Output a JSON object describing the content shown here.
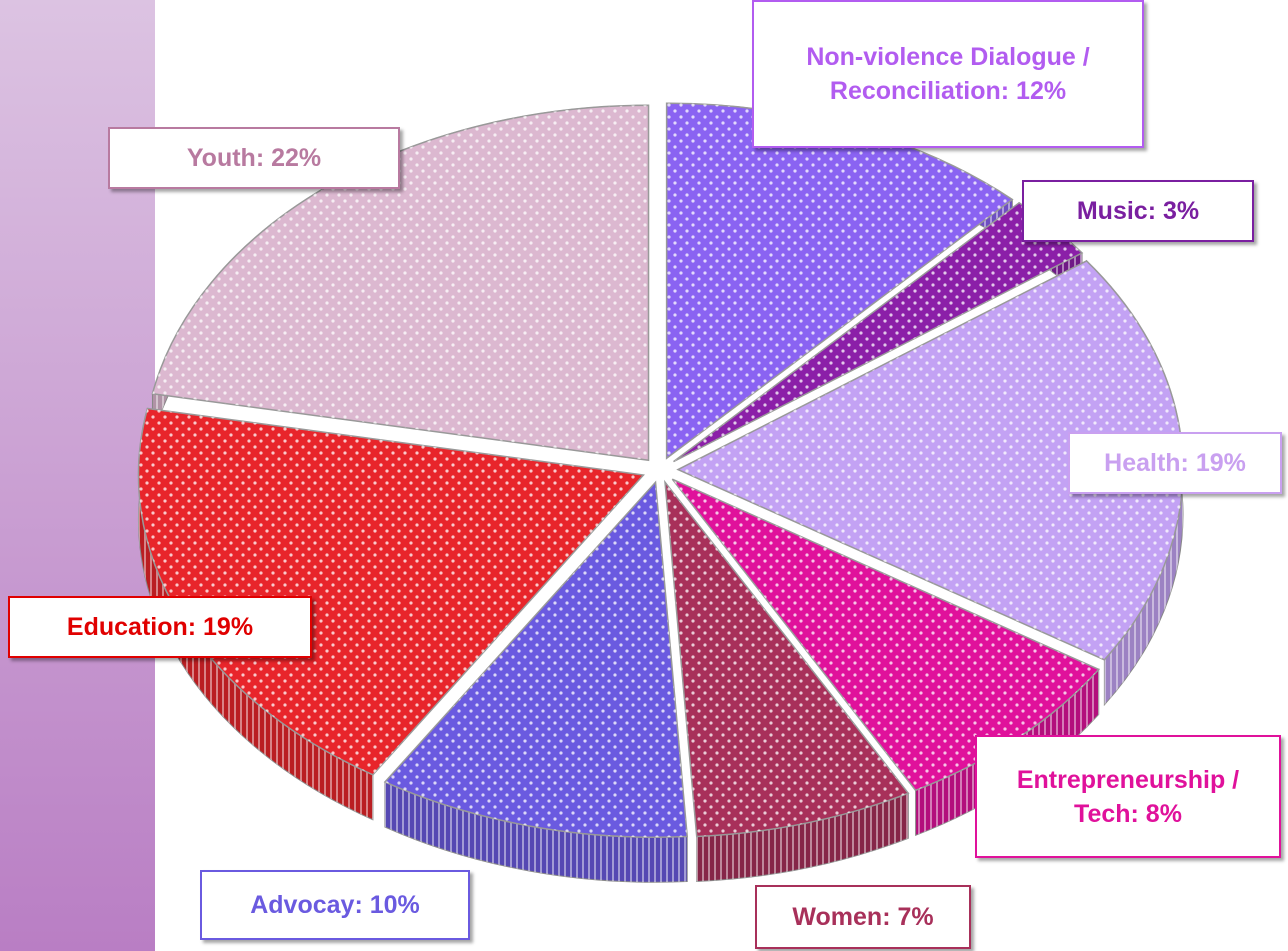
{
  "chart_data": {
    "type": "pie3d",
    "values": [
      12,
      3,
      19,
      8,
      7,
      10,
      19,
      22
    ],
    "value_labels": [
      "Non-violence Dialogue / Reconciliation: 12%",
      "Music: 3%",
      "Health: 19%",
      "Entrepreneurship / Tech: 8%",
      "Women: 7%",
      "Advocay: 10%",
      "Education: 19%",
      "Youth: 22%"
    ],
    "colors": [
      "#8a63f2",
      "#8b1fa8",
      "#c3a2f4",
      "#e0119b",
      "#a8305a",
      "#6a5ae0",
      "#e8252b",
      "#dcb8d0"
    ],
    "label_colors": [
      "#b25cf0",
      "#7a1fa0",
      "#c9a0f0",
      "#e0119b",
      "#a8305a",
      "#6a5ae0",
      "#e00000",
      "#b87aa0"
    ]
  }
}
